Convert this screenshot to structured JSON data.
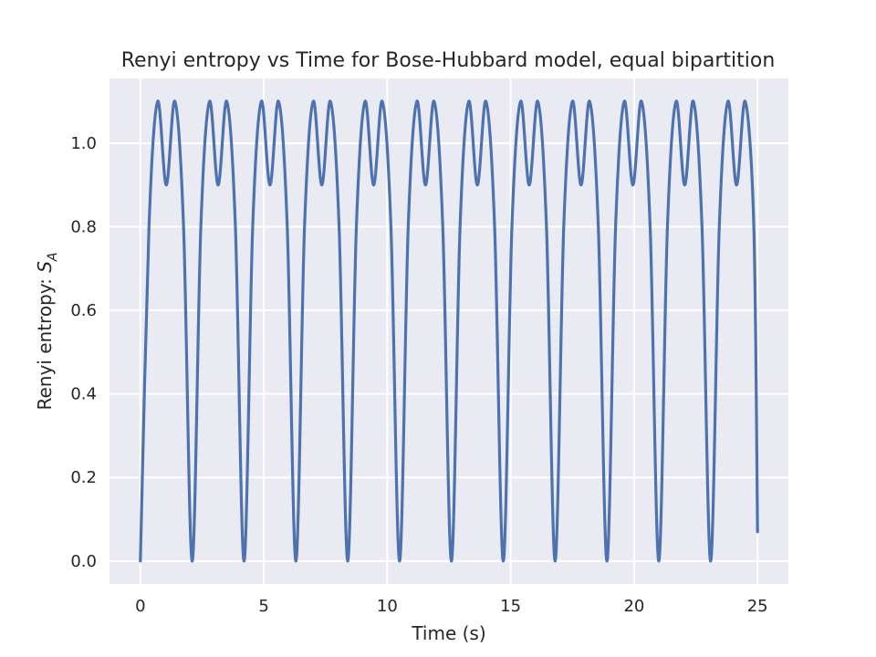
{
  "chart_data": {
    "type": "line",
    "title": "Renyi entropy vs Time for Bose-Hubbard model, equal bipartition",
    "xlabel": "Time (s)",
    "ylabel_main": "Renyi entropy: ",
    "ylabel_symbol": "S",
    "ylabel_subscript": "A",
    "xlim": [
      -1.25,
      26.25
    ],
    "ylim": [
      -0.055,
      1.155
    ],
    "xticks": [
      0,
      5,
      10,
      15,
      20,
      25
    ],
    "xtick_labels": [
      "0",
      "5",
      "10",
      "15",
      "20",
      "25"
    ],
    "yticks": [
      0.0,
      0.2,
      0.4,
      0.6,
      0.8,
      1.0
    ],
    "ytick_labels": [
      "0.0",
      "0.2",
      "0.4",
      "0.6",
      "0.8",
      "1.0"
    ],
    "grid": true,
    "background_color": "#eaeaf2",
    "series": [
      {
        "color": "#4c72b0",
        "x": [
          0.0,
          0.35,
          0.7,
          1.05,
          1.4,
          1.75,
          2.1,
          2.45,
          2.8,
          3.15,
          3.5,
          3.85,
          4.2,
          4.55,
          4.9,
          5.25,
          5.6,
          5.95,
          6.3,
          6.65,
          7.0,
          7.35,
          7.7,
          8.05,
          8.4,
          8.75,
          9.1,
          9.45,
          9.8,
          10.15,
          10.5,
          10.85,
          11.2,
          11.55,
          11.9,
          12.25,
          12.6,
          12.95,
          13.3,
          13.65,
          14.0,
          14.35,
          14.7,
          15.05,
          15.4,
          15.75,
          16.1,
          16.45,
          16.8,
          17.15,
          17.5,
          17.85,
          18.2,
          18.55,
          18.9,
          19.25,
          19.6,
          19.95,
          20.3,
          20.65,
          21.0,
          21.35,
          21.7,
          22.05,
          22.4,
          22.75,
          23.1,
          23.45,
          23.8,
          24.15,
          24.5,
          24.85,
          25.0
        ],
        "y": [
          0.0,
          0.8,
          1.1,
          0.9,
          1.1,
          0.8,
          0.0,
          0.8,
          1.1,
          0.9,
          1.1,
          0.8,
          0.0,
          0.8,
          1.1,
          0.9,
          1.1,
          0.8,
          0.0,
          0.8,
          1.1,
          0.9,
          1.1,
          0.8,
          0.0,
          0.8,
          1.1,
          0.9,
          1.1,
          0.8,
          0.0,
          0.8,
          1.1,
          0.9,
          1.1,
          0.8,
          0.0,
          0.8,
          1.1,
          0.9,
          1.1,
          0.8,
          0.0,
          0.8,
          1.1,
          0.9,
          1.1,
          0.8,
          0.0,
          0.8,
          1.1,
          0.9,
          1.1,
          0.8,
          0.0,
          0.8,
          1.1,
          0.9,
          1.1,
          0.8,
          0.0,
          0.8,
          1.1,
          0.9,
          1.1,
          0.8,
          0.0,
          0.8,
          1.1,
          0.9,
          1.1,
          0.8,
          0.07
        ]
      }
    ]
  }
}
